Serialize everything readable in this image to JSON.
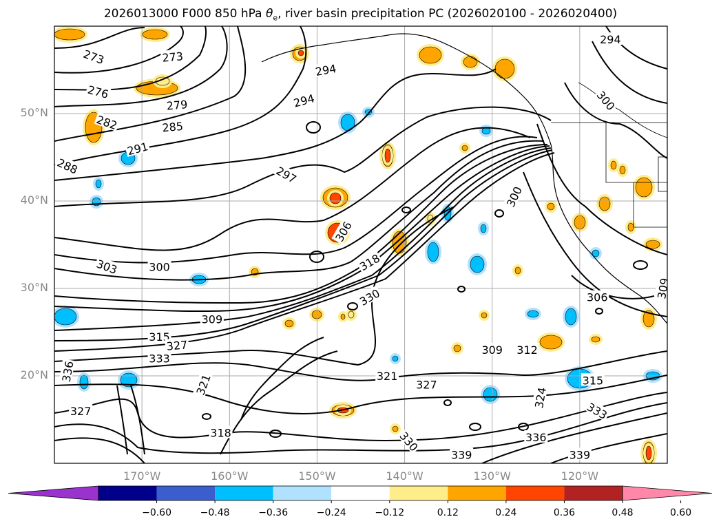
{
  "title": "2026013000 F000 850 hPa θe, river basin precipitation PC (2026020100 - 2026020400)",
  "title_parts": {
    "prefix": "2026013000 F000 850 hPa ",
    "theta": "θ",
    "theta_sub": "e",
    "suffix": ", river basin precipitation PC (2026020100 - 2026020400)"
  },
  "lat_labels": [
    "50°N",
    "40°N",
    "30°N",
    "20°N"
  ],
  "lon_labels": [
    "170°W",
    "160°W",
    "150°W",
    "140°W",
    "130°W",
    "120°W"
  ],
  "colorbar": {
    "ticks": [
      "−0.60",
      "−0.48",
      "−0.36",
      "−0.24",
      "−0.12",
      "0.12",
      "0.24",
      "0.36",
      "0.48",
      "0.60"
    ],
    "colors": [
      "#9a32cd",
      "#00008b",
      "#3a5fcd",
      "#00bfff",
      "#b0e2ff",
      "#ffffff",
      "#ffec8b",
      "#ffa500",
      "#ff4500",
      "#b22222",
      "#ff88aa"
    ]
  },
  "contour_labels": [
    {
      "text": "273",
      "lat": 56.5,
      "lon": -175.5,
      "rot": 20
    },
    {
      "text": "273",
      "lat": 56.5,
      "lon": -166.5,
      "rot": -5
    },
    {
      "text": "276",
      "lat": 52.5,
      "lon": -175.0,
      "rot": 15
    },
    {
      "text": "279",
      "lat": 51.0,
      "lon": -166.0,
      "rot": -5
    },
    {
      "text": "282",
      "lat": 49.0,
      "lon": -174.0,
      "rot": 20
    },
    {
      "text": "285",
      "lat": 48.5,
      "lon": -166.5,
      "rot": -5
    },
    {
      "text": "288",
      "lat": 44.0,
      "lon": -178.5,
      "rot": 25
    },
    {
      "text": "291",
      "lat": 46.0,
      "lon": -170.5,
      "rot": -15
    },
    {
      "text": "294",
      "lat": 55.0,
      "lon": -149.0,
      "rot": -10
    },
    {
      "text": "294",
      "lat": 51.5,
      "lon": -151.5,
      "rot": -15
    },
    {
      "text": "294",
      "lat": 58.5,
      "lon": -116.5,
      "rot": 0
    },
    {
      "text": "297",
      "lat": 43.0,
      "lon": -153.5,
      "rot": 30
    },
    {
      "text": "300",
      "lat": 32.5,
      "lon": -168.0,
      "rot": 0
    },
    {
      "text": "300",
      "lat": 40.5,
      "lon": -127.5,
      "rot": -65
    },
    {
      "text": "300",
      "lat": 51.5,
      "lon": -117.0,
      "rot": 50
    },
    {
      "text": "303",
      "lat": 32.5,
      "lon": -174.0,
      "rot": 20
    },
    {
      "text": "306",
      "lat": 36.5,
      "lon": -147.0,
      "rot": -60
    },
    {
      "text": "306",
      "lat": 29.0,
      "lon": -118.0,
      "rot": 0
    },
    {
      "text": "309",
      "lat": 26.5,
      "lon": -162.0,
      "rot": 0
    },
    {
      "text": "309",
      "lat": 23.0,
      "lon": -130.0,
      "rot": 0
    },
    {
      "text": "309",
      "lat": 30.0,
      "lon": -110.5,
      "rot": -80
    },
    {
      "text": "312",
      "lat": 23.0,
      "lon": -126.0,
      "rot": 0
    },
    {
      "text": "315",
      "lat": 24.5,
      "lon": -168.0,
      "rot": 0
    },
    {
      "text": "315",
      "lat": 19.5,
      "lon": -118.5,
      "rot": 0
    },
    {
      "text": "318",
      "lat": 33.0,
      "lon": -144.0,
      "rot": -30
    },
    {
      "text": "318",
      "lat": 13.5,
      "lon": -161.0,
      "rot": 0
    },
    {
      "text": "321",
      "lat": 20.0,
      "lon": -142.0,
      "rot": 0
    },
    {
      "text": "321",
      "lat": 19.0,
      "lon": -163.0,
      "rot": -70
    },
    {
      "text": "324",
      "lat": 17.5,
      "lon": -124.5,
      "rot": -80
    },
    {
      "text": "327",
      "lat": 23.5,
      "lon": -166.0,
      "rot": -5
    },
    {
      "text": "327",
      "lat": 19.0,
      "lon": -137.5,
      "rot": 0
    },
    {
      "text": "327",
      "lat": 16.0,
      "lon": -177.0,
      "rot": 0
    },
    {
      "text": "330",
      "lat": 29.0,
      "lon": -144.0,
      "rot": -30
    },
    {
      "text": "330",
      "lat": 12.5,
      "lon": -139.5,
      "rot": 50
    },
    {
      "text": "333",
      "lat": 22.0,
      "lon": -168.0,
      "rot": 0
    },
    {
      "text": "333",
      "lat": 16.0,
      "lon": -118.0,
      "rot": 30
    },
    {
      "text": "336",
      "lat": 20.5,
      "lon": -178.5,
      "rot": -80
    },
    {
      "text": "336",
      "lat": 13.0,
      "lon": -125.0,
      "rot": 0
    },
    {
      "text": "339",
      "lat": 11.0,
      "lon": -133.5,
      "rot": 0
    },
    {
      "text": "339",
      "lat": 11.0,
      "lon": -120.0,
      "rot": 0
    }
  ]
}
